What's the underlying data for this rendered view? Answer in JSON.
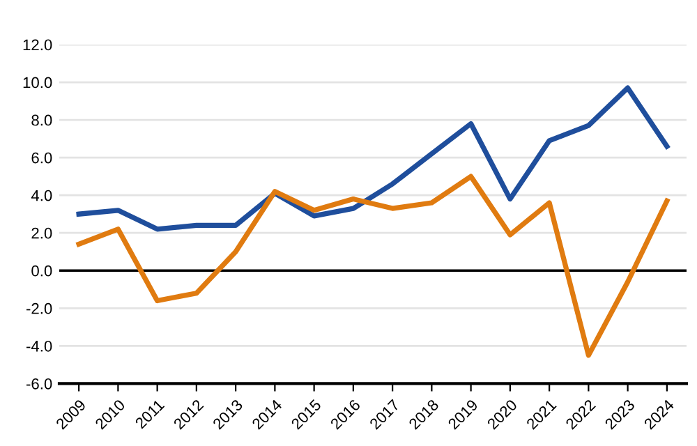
{
  "chart_data": {
    "type": "line",
    "categories": [
      "2009",
      "2010",
      "2011",
      "2012",
      "2013",
      "2014",
      "2015",
      "2016",
      "2017",
      "2018",
      "2019",
      "2020",
      "2021",
      "2022",
      "2023",
      "2024"
    ],
    "series": [
      {
        "color": "#1f4e9c",
        "values": [
          3.0,
          3.2,
          2.2,
          2.4,
          2.4,
          4.1,
          2.9,
          3.3,
          4.6,
          6.2,
          7.8,
          3.8,
          6.9,
          7.7,
          9.7,
          6.6
        ]
      },
      {
        "color": "#e07b10",
        "values": [
          1.4,
          2.2,
          -1.6,
          -1.2,
          1.0,
          4.2,
          3.2,
          3.8,
          3.3,
          3.6,
          5.0,
          1.9,
          3.6,
          -4.5,
          -0.6,
          3.7
        ]
      }
    ],
    "ylim": [
      -6,
      12
    ],
    "yticks": [
      {
        "value": -6,
        "label": "-6.0"
      },
      {
        "value": -4,
        "label": "-4.0"
      },
      {
        "value": -2,
        "label": "-2.0"
      },
      {
        "value": 0,
        "label": "0.0"
      },
      {
        "value": 2,
        "label": "2.0"
      },
      {
        "value": 4,
        "label": "4.0"
      },
      {
        "value": 6,
        "label": "6.0"
      },
      {
        "value": 8,
        "label": "8.0"
      },
      {
        "value": 10,
        "label": "10.0"
      },
      {
        "value": 12,
        "label": "12.0"
      }
    ],
    "ref_lines": [
      {
        "axis": "y",
        "value": 0,
        "color": "#000000"
      }
    ],
    "grid": "y",
    "marker": "none",
    "line_style": "solid"
  }
}
